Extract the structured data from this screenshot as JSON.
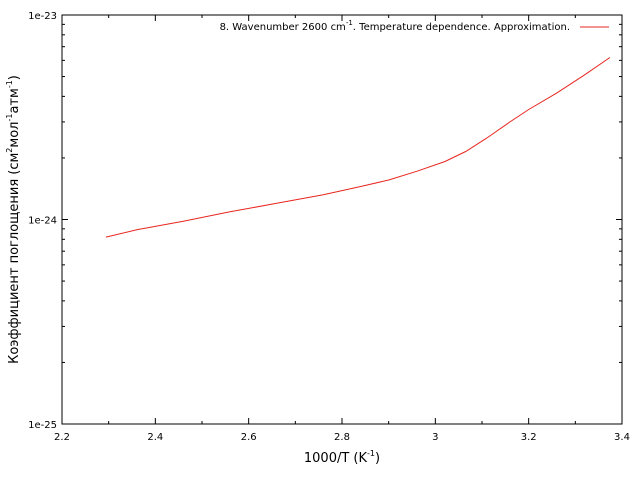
{
  "chart_data": {
    "type": "line",
    "title": "",
    "xlabel": {
      "base": "1000/T (K",
      "sup": "-1",
      "tail": ")"
    },
    "ylabel": {
      "parts": [
        {
          "t": "Коэффициент поглощения (см",
          "sup": false
        },
        {
          "t": "2",
          "sup": true
        },
        {
          "t": "мол",
          "sup": false
        },
        {
          "t": "-1",
          "sup": true
        },
        {
          "t": "атм",
          "sup": false
        },
        {
          "t": "-1",
          "sup": true
        },
        {
          "t": ")",
          "sup": false
        }
      ]
    },
    "xlim": [
      2.2,
      3.4
    ],
    "ylim": [
      1e-25,
      1e-23
    ],
    "yscale": "log",
    "x_ticks": [
      2.2,
      2.4,
      2.6,
      2.8,
      3.0,
      3.2,
      3.4
    ],
    "x_tick_labels": [
      "2.2",
      "2.4",
      "2.6",
      "2.8",
      "3",
      "3.2",
      "3.4"
    ],
    "y_ticks": [
      1e-25,
      1e-24,
      1e-23
    ],
    "y_tick_labels": [
      "1e-25",
      "1e-24",
      "1e-23"
    ],
    "grid": false,
    "legend_position": "top-right",
    "series": [
      {
        "name": {
          "base": "8. Wavenumber 2600 cm",
          "sup": "-1",
          "tail": ". Temperature dependence. Approximation."
        },
        "color": "#e8261f",
        "x": [
          2.294,
          2.36,
          2.46,
          2.56,
          2.66,
          2.76,
          2.84,
          2.9,
          2.96,
          3.02,
          3.065,
          3.11,
          3.16,
          3.2,
          3.26,
          3.32,
          3.374
        ],
        "y": [
          8.2e-25,
          8.9e-25,
          9.8e-25,
          1.09e-24,
          1.2e-24,
          1.32e-24,
          1.45e-24,
          1.56e-24,
          1.72e-24,
          1.92e-24,
          2.15e-24,
          2.5e-24,
          3e-24,
          3.45e-24,
          4.15e-24,
          5.1e-24,
          6.2e-24
        ]
      }
    ]
  }
}
